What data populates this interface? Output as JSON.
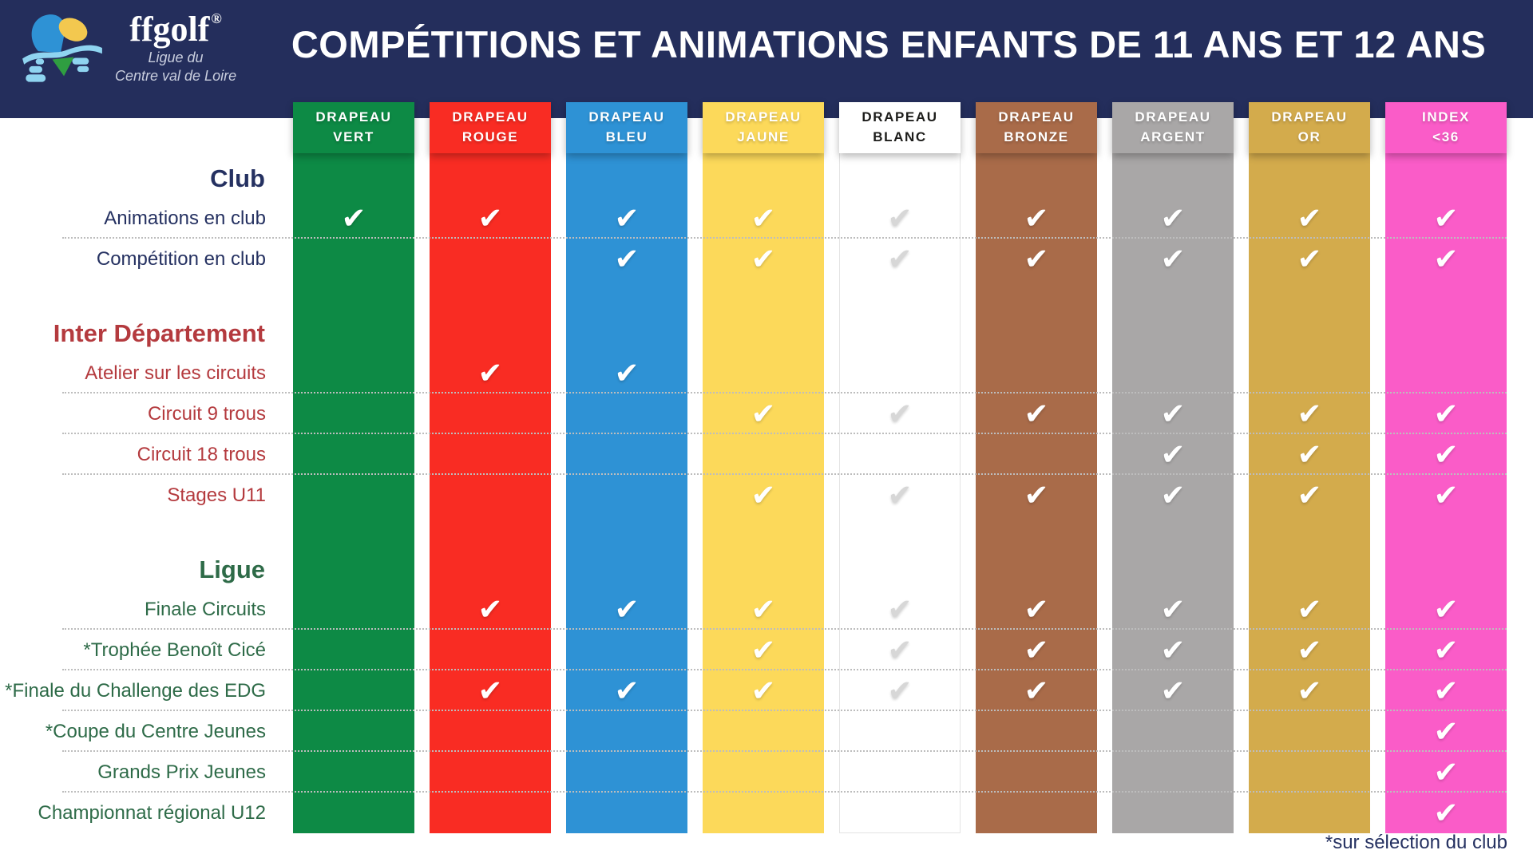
{
  "header": {
    "brand": "ffgolf",
    "registered": "®",
    "subtitle_line1": "Ligue du",
    "subtitle_line2": "Centre val de Loire",
    "title": "COMPÉTITIONS ET ANIMATIONS ENFANTS DE 11 ANS ET 12 ANS"
  },
  "colors": {
    "band_navy": "#242e5c",
    "club_navy": "#253161",
    "inter_red": "#b43a3e",
    "ligue_green": "#2e6b48",
    "check_white": "#ffffff",
    "check_gray": "#d7d7d7",
    "divider_gray": "#bdbdbd"
  },
  "check_glyph": "✔",
  "columns": [
    {
      "id": "vert",
      "label_line1": "DRAPEAU",
      "label_line2": "VERT",
      "bg": "#0d8a45",
      "fg": "#ffffff",
      "check": "#ffffff"
    },
    {
      "id": "rouge",
      "label_line1": "DRAPEAU",
      "label_line2": "ROUGE",
      "bg": "#f92c23",
      "fg": "#ffffff",
      "check": "#ffffff"
    },
    {
      "id": "bleu",
      "label_line1": "DRAPEAU",
      "label_line2": "BLEU",
      "bg": "#2e92d5",
      "fg": "#ffffff",
      "check": "#ffffff"
    },
    {
      "id": "jaune",
      "label_line1": "DRAPEAU",
      "label_line2": "JAUNE",
      "bg": "#fcd95a",
      "fg": "#ffffff",
      "check": "#ffffff"
    },
    {
      "id": "blanc",
      "label_line1": "DRAPEAU",
      "label_line2": "BLANC",
      "bg": "#ffffff",
      "fg": "#1c1c1a",
      "check": "#d7d7d7",
      "border": "#e4e4e4"
    },
    {
      "id": "bronze",
      "label_line1": "DRAPEAU",
      "label_line2": "BRONZE",
      "bg": "#a96b49",
      "fg": "#ffffff",
      "check": "#ffffff"
    },
    {
      "id": "argent",
      "label_line1": "DRAPEAU",
      "label_line2": "ARGENT",
      "bg": "#a9a7a7",
      "fg": "#ffffff",
      "check": "#ffffff"
    },
    {
      "id": "or",
      "label_line1": "DRAPEAU",
      "label_line2": "OR",
      "bg": "#d3ab4c",
      "fg": "#ffffff",
      "check": "#ffffff"
    },
    {
      "id": "index",
      "label_line1": "INDEX",
      "label_line2": "<36",
      "bg": "#fa5cc8",
      "fg": "#ffffff",
      "check": "#ffffff"
    }
  ],
  "rows": [
    {
      "type": "section",
      "label": "Club",
      "color": "#253161"
    },
    {
      "type": "item",
      "label": "Animations en club",
      "color": "#253161",
      "checks": [
        1,
        1,
        1,
        1,
        1,
        1,
        1,
        1,
        1
      ],
      "divider": true
    },
    {
      "type": "item",
      "label": "Compétition en club",
      "color": "#253161",
      "checks": [
        0,
        0,
        1,
        1,
        1,
        1,
        1,
        1,
        1
      ],
      "divider": false
    },
    {
      "type": "spacer"
    },
    {
      "type": "section",
      "label": "Inter Département",
      "color": "#b43a3e"
    },
    {
      "type": "item",
      "label": "Atelier sur les circuits",
      "color": "#b43a3e",
      "checks": [
        0,
        1,
        1,
        0,
        0,
        0,
        0,
        0,
        0
      ],
      "divider": true
    },
    {
      "type": "item",
      "label": "Circuit 9 trous",
      "color": "#b43a3e",
      "checks": [
        0,
        0,
        0,
        1,
        1,
        1,
        1,
        1,
        1
      ],
      "divider": true
    },
    {
      "type": "item",
      "label": "Circuit 18 trous",
      "color": "#b43a3e",
      "checks": [
        0,
        0,
        0,
        0,
        0,
        0,
        1,
        1,
        1
      ],
      "divider": true
    },
    {
      "type": "item",
      "label": "Stages U11",
      "color": "#b43a3e",
      "checks": [
        0,
        0,
        0,
        1,
        1,
        1,
        1,
        1,
        1
      ],
      "divider": false
    },
    {
      "type": "spacer"
    },
    {
      "type": "section",
      "label": "Ligue",
      "color": "#2e6b48"
    },
    {
      "type": "item",
      "label": "Finale Circuits",
      "color": "#2e6b48",
      "checks": [
        0,
        1,
        1,
        1,
        1,
        1,
        1,
        1,
        1
      ],
      "divider": true
    },
    {
      "type": "item",
      "label": "*Trophée Benoît Cicé",
      "color": "#2e6b48",
      "checks": [
        0,
        0,
        0,
        1,
        1,
        1,
        1,
        1,
        1
      ],
      "divider": true
    },
    {
      "type": "item",
      "label": "*Finale du Challenge des EDG",
      "color": "#2e6b48",
      "checks": [
        0,
        1,
        1,
        1,
        1,
        1,
        1,
        1,
        1
      ],
      "divider": true
    },
    {
      "type": "item",
      "label": "*Coupe du Centre Jeunes",
      "color": "#2e6b48",
      "checks": [
        0,
        0,
        0,
        0,
        0,
        0,
        0,
        0,
        1
      ],
      "divider": true
    },
    {
      "type": "item",
      "label": "Grands Prix Jeunes",
      "color": "#2e6b48",
      "checks": [
        0,
        0,
        0,
        0,
        0,
        0,
        0,
        0,
        1
      ],
      "divider": true
    },
    {
      "type": "item",
      "label": "Championnat régional U12",
      "color": "#2e6b48",
      "checks": [
        0,
        0,
        0,
        0,
        0,
        0,
        0,
        0,
        1
      ],
      "divider": false
    }
  ],
  "footer": {
    "note": "*sur sélection du club"
  }
}
